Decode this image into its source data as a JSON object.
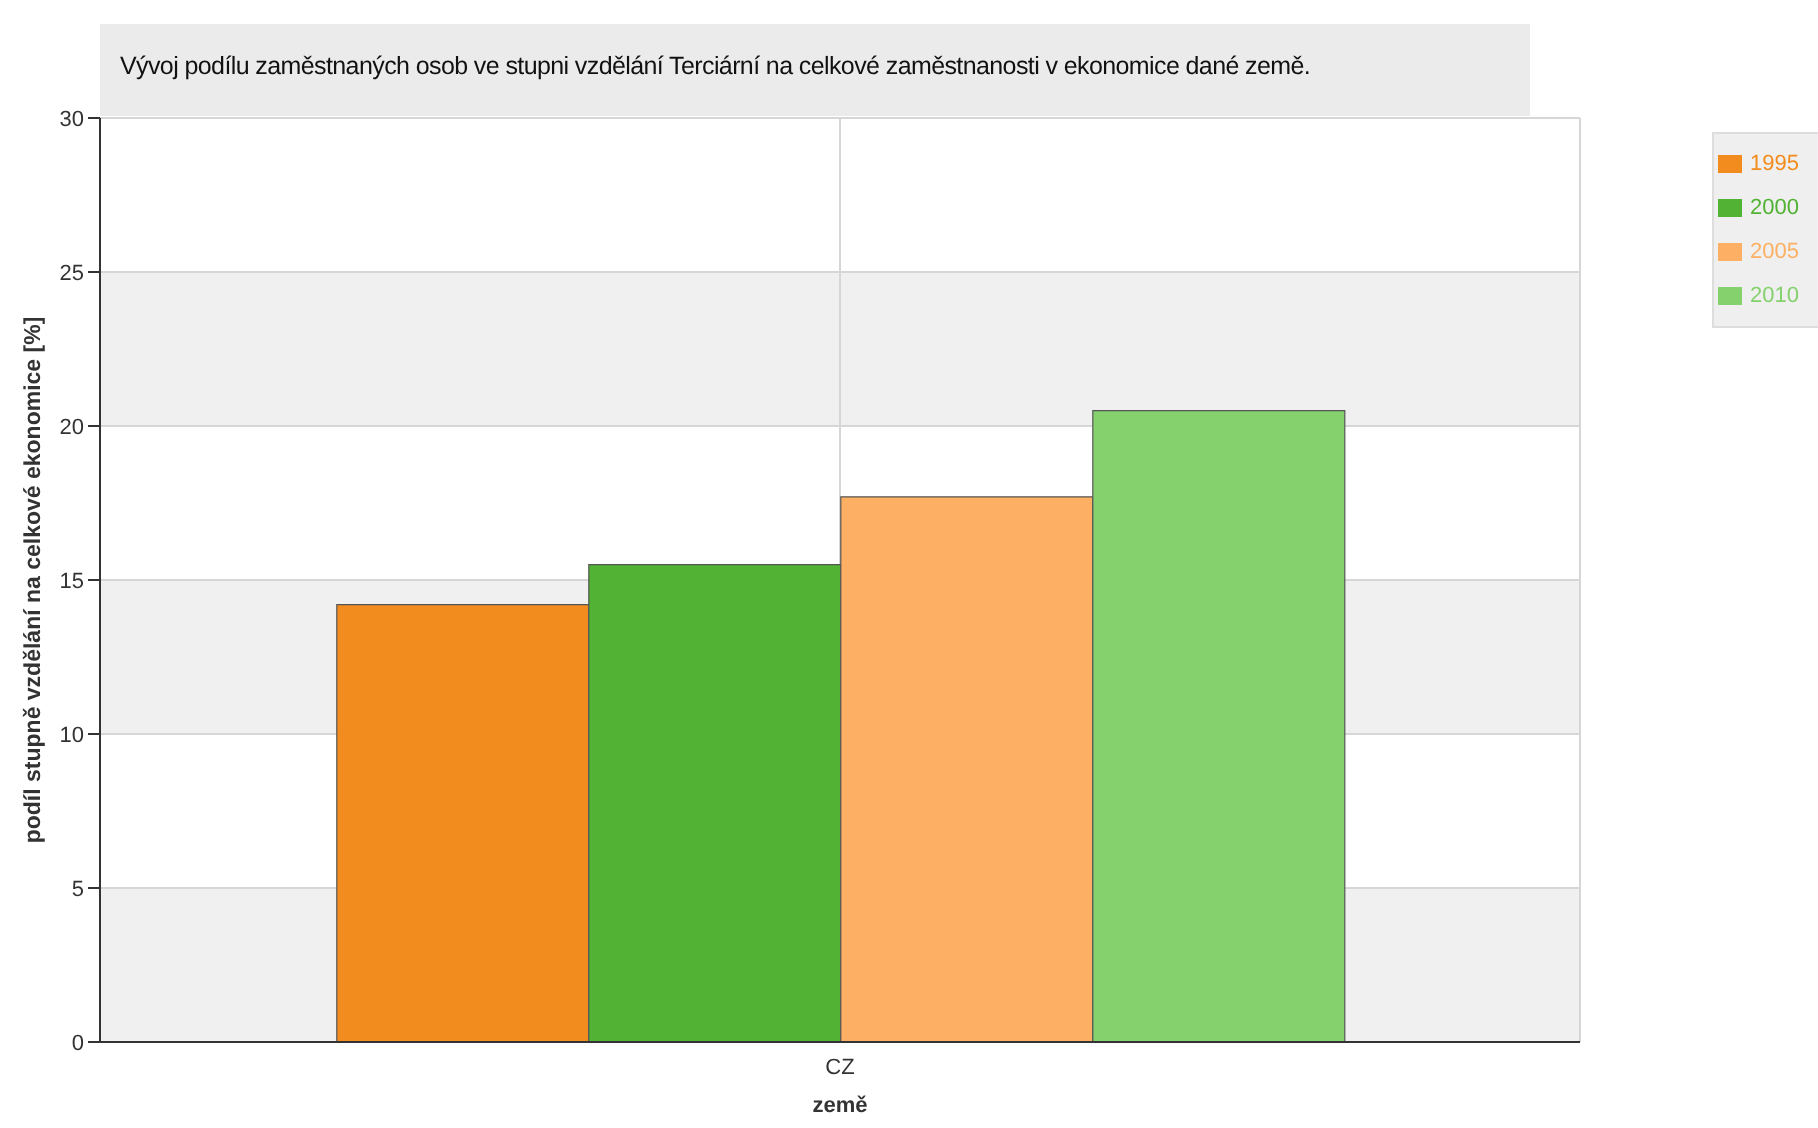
{
  "chart_data": {
    "type": "bar",
    "title": "Vývoj podílu zaměstnaných osob ve stupni vzdělání Terciární na celkové zaměstnanosti v ekonomice dané země.",
    "xlabel": "země",
    "ylabel": "podíl stupně vzdělání na celkové ekonomice [%]",
    "categories": [
      "CZ"
    ],
    "series": [
      {
        "name": "1995",
        "color": "#f28c1e",
        "values": [
          14.2
        ]
      },
      {
        "name": "2000",
        "color": "#52b234",
        "values": [
          15.5
        ]
      },
      {
        "name": "2005",
        "color": "#fdb064",
        "values": [
          17.7
        ]
      },
      {
        "name": "2010",
        "color": "#84d16e",
        "values": [
          20.5
        ]
      }
    ],
    "ylim": [
      0,
      30
    ],
    "yticks": [
      0,
      5,
      10,
      15,
      20,
      25,
      30
    ],
    "grid": true,
    "legend": "top right"
  }
}
